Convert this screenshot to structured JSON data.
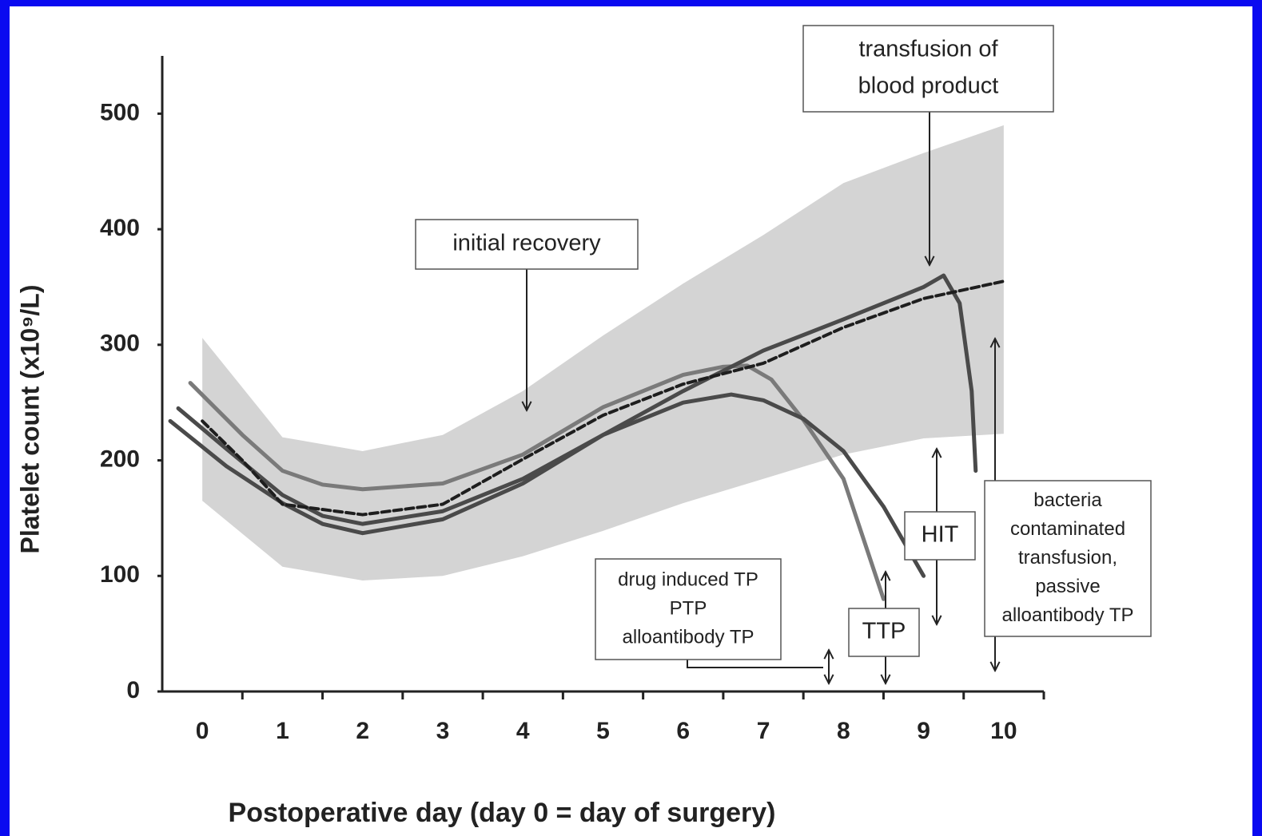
{
  "chart_data": {
    "type": "line",
    "y_label": "Platelet count (x10⁹/L)",
    "x_label": "Postoperative day (day 0 = day of surgery)",
    "xlim": [
      -0.5,
      10.5
    ],
    "ylim": [
      0,
      550
    ],
    "xticks": [
      0,
      1,
      2,
      3,
      4,
      5,
      6,
      7,
      8,
      9,
      10
    ],
    "yticks": [
      0,
      100,
      200,
      300,
      400,
      500
    ],
    "band": {
      "color": "#d4d4d4",
      "x": [
        0,
        1,
        2,
        3,
        4,
        5,
        6,
        7,
        8,
        9,
        10
      ],
      "upper": [
        306,
        220,
        208,
        222,
        260,
        308,
        353,
        395,
        440,
        466,
        490
      ],
      "lower": [
        165,
        108,
        96,
        100,
        117,
        139,
        163,
        184,
        205,
        219,
        223
      ]
    },
    "series": [
      {
        "color": "#7a7a7a",
        "style": "solid",
        "x": [
          -0.15,
          0.5,
          1,
          1.5,
          2,
          3,
          4,
          5,
          6,
          6.5,
          6.8,
          7.1,
          7.5,
          8,
          8.5
        ],
        "values": [
          267,
          222,
          191,
          179,
          175,
          180,
          205,
          246,
          274,
          281,
          282,
          270,
          235,
          184,
          80
        ]
      },
      {
        "color": "#4a4a4a",
        "style": "solid",
        "x": [
          -0.3,
          0.3,
          1,
          1.5,
          2,
          3,
          4,
          5,
          6,
          6.6,
          7,
          7.5,
          8,
          8.5,
          9
        ],
        "values": [
          245,
          210,
          170,
          152,
          145,
          156,
          184,
          222,
          250,
          257,
          252,
          236,
          208,
          160,
          100
        ]
      },
      {
        "color": "#4a4a4a",
        "style": "solid",
        "x": [
          -0.4,
          0.3,
          1,
          1.5,
          2,
          3,
          4,
          5,
          6,
          7,
          8,
          9,
          9.25,
          9.45,
          9.6,
          9.65
        ],
        "values": [
          234,
          195,
          163,
          145,
          137,
          149,
          180,
          222,
          260,
          295,
          322,
          350,
          360,
          336,
          260,
          191
        ]
      },
      {
        "color": "#1e1e1e",
        "style": "dashed",
        "x": [
          0,
          0.5,
          1,
          2,
          3,
          4,
          5,
          6,
          7,
          8,
          9,
          10
        ],
        "values": [
          234,
          200,
          162,
          153,
          162,
          201,
          239,
          266,
          284,
          315,
          340,
          355
        ]
      }
    ],
    "annotations": [
      {
        "lines": [
          "initial recovery"
        ]
      },
      {
        "lines": [
          "transfusion of",
          "blood product"
        ]
      },
      {
        "lines": [
          "drug induced TP",
          "PTP",
          "alloantibody TP"
        ]
      },
      {
        "lines": [
          "TTP"
        ]
      },
      {
        "lines": [
          "HIT"
        ]
      },
      {
        "lines": [
          "bacteria",
          "contaminated",
          "transfusion,",
          "passive",
          "alloantibody TP"
        ]
      }
    ]
  }
}
